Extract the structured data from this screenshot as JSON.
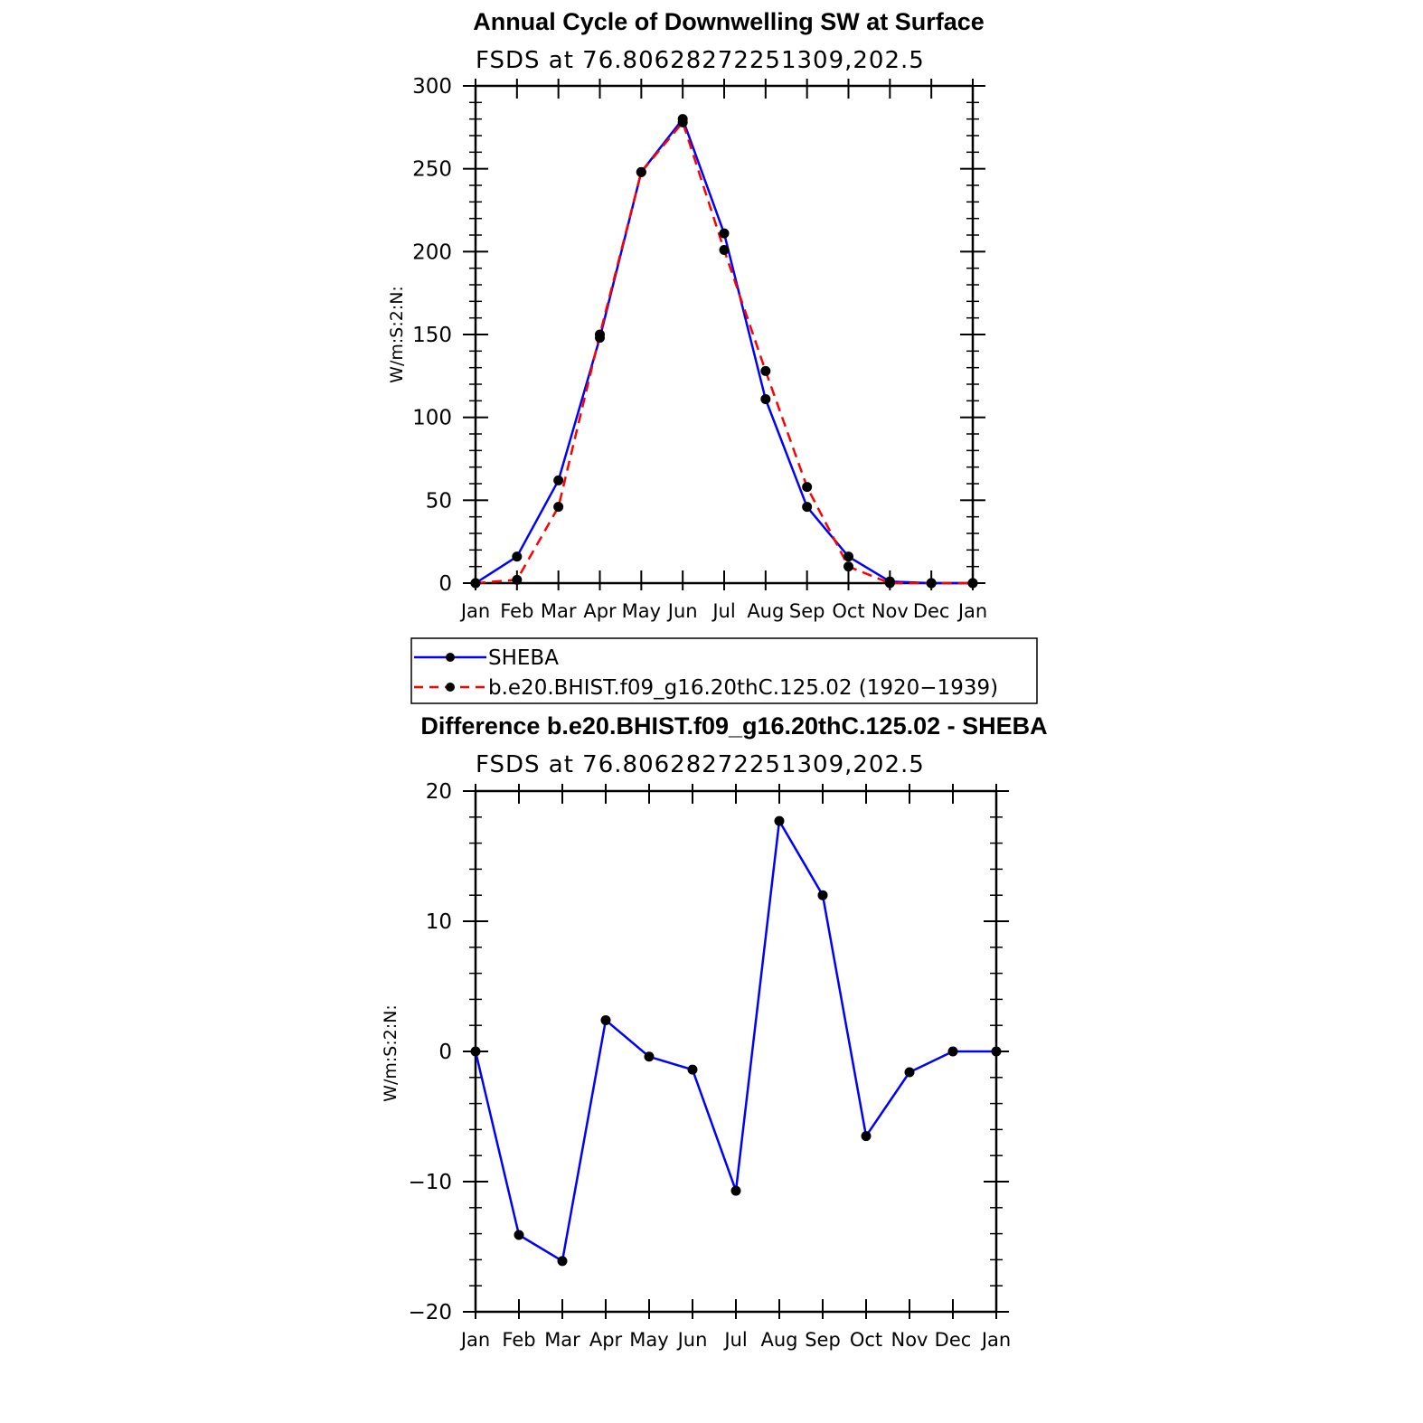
{
  "chart_data": [
    {
      "type": "line",
      "title": "Annual Cycle of Downwelling SW at Surface",
      "subtitle": "FSDS at 76.80628272251309,202.5",
      "xlabel": "",
      "ylabel": "W/m:S:2:N:",
      "categories": [
        "Jan",
        "Feb",
        "Mar",
        "Apr",
        "May",
        "Jun",
        "Jul",
        "Aug",
        "Sep",
        "Oct",
        "Nov",
        "Dec",
        "Jan"
      ],
      "ylim": [
        0,
        300
      ],
      "yticks": [
        0,
        50,
        100,
        150,
        200,
        250,
        300
      ],
      "grid": false,
      "legend_position": "below plot",
      "series": [
        {
          "name": "SHEBA",
          "color": "#0000ff",
          "dash": "solid",
          "values": [
            0,
            16,
            62,
            148,
            248,
            280,
            211,
            111,
            46,
            16,
            1,
            0,
            0
          ]
        },
        {
          "name": "b.e20.BHIST.f09_g16.20thC.125.02 (1920−1939)",
          "color": "#ff0000",
          "dash": "dashed",
          "values": [
            0,
            2,
            46,
            150,
            248,
            278,
            201,
            128,
            58,
            10,
            0,
            0,
            0
          ]
        }
      ]
    },
    {
      "type": "line",
      "title": "Difference b.e20.BHIST.f09_g16.20thC.125.02 - SHEBA",
      "subtitle": "FSDS at 76.80628272251309,202.5",
      "xlabel": "",
      "ylabel": "W/m:S:2:N:",
      "categories": [
        "Jan",
        "Feb",
        "Mar",
        "Apr",
        "May",
        "Jun",
        "Jul",
        "Aug",
        "Sep",
        "Oct",
        "Nov",
        "Dec",
        "Jan"
      ],
      "ylim": [
        -20,
        20
      ],
      "yticks": [
        -20,
        -10,
        0,
        10,
        20
      ],
      "ytick_labels": [
        "−20",
        "−10",
        "0",
        "10",
        "20"
      ],
      "grid": false,
      "series": [
        {
          "color": "#0000ff",
          "dash": "solid",
          "values": [
            0,
            -14.1,
            -16.1,
            2.4,
            -0.4,
            -1.4,
            -10.7,
            17.7,
            12.0,
            -6.5,
            -1.6,
            0,
            0
          ]
        }
      ]
    }
  ]
}
